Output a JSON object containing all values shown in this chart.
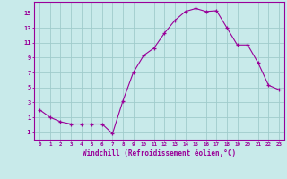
{
  "x": [
    0,
    1,
    2,
    3,
    4,
    5,
    6,
    7,
    8,
    9,
    10,
    11,
    12,
    13,
    14,
    15,
    16,
    17,
    18,
    19,
    20,
    21,
    22,
    23
  ],
  "y": [
    2.0,
    1.0,
    0.4,
    0.1,
    0.1,
    0.1,
    0.1,
    -1.2,
    3.2,
    7.0,
    9.3,
    10.3,
    12.3,
    14.0,
    15.2,
    15.6,
    15.2,
    15.3,
    13.0,
    10.7,
    10.7,
    8.3,
    5.3,
    4.7
  ],
  "line_color": "#990099",
  "marker": "+",
  "marker_color": "#990099",
  "bg_color": "#c8eaea",
  "grid_color": "#a0cccc",
  "axis_color": "#990099",
  "tick_color": "#990099",
  "xlabel": "Windchill (Refroidissement éolien,°C)",
  "yticks": [
    -1,
    1,
    3,
    5,
    7,
    9,
    11,
    13,
    15
  ],
  "xlim": [
    -0.5,
    23.5
  ],
  "ylim": [
    -2.0,
    16.5
  ]
}
